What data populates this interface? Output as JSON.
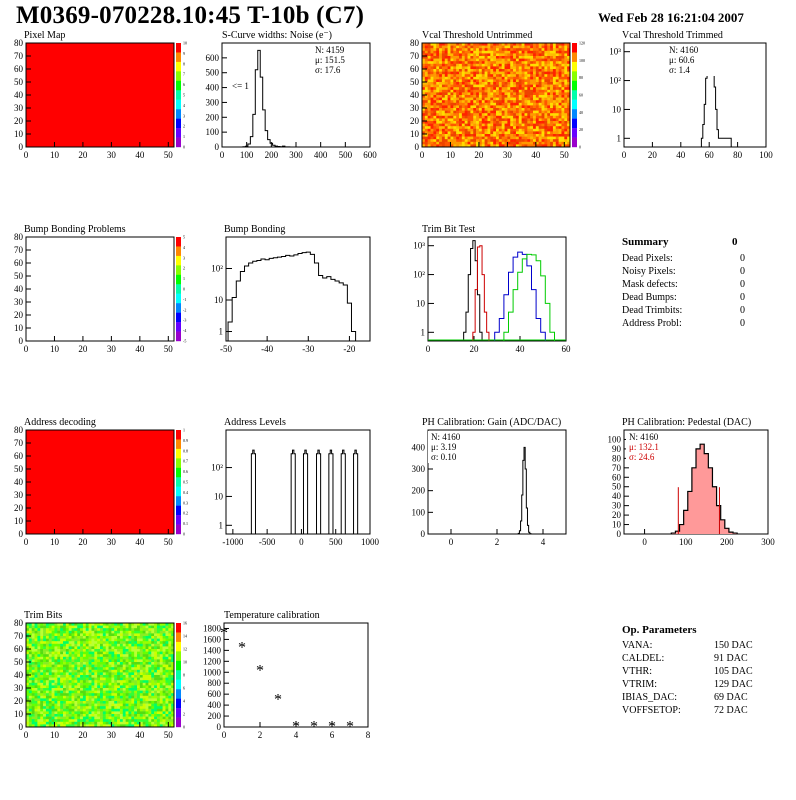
{
  "header": {
    "title": "M0369-070228.10:45 T-10b (C7)",
    "date": "Wed Feb 28 16:21:04 2007"
  },
  "colors": {
    "red_map": "#ff0000",
    "hist_line": "#000000",
    "trim_red": "#cc0000",
    "trim_blue": "#0000cc",
    "trim_green": "#00cc00",
    "pedestal_fill": "#ff9999"
  },
  "summary": {
    "title": "Summary",
    "total": "0",
    "rows": [
      {
        "label": "Dead Pixels:",
        "value": "0"
      },
      {
        "label": "Noisy Pixels:",
        "value": "0"
      },
      {
        "label": "Mask defects:",
        "value": "0"
      },
      {
        "label": "Dead Bumps:",
        "value": "0"
      },
      {
        "label": "Dead Trimbits:",
        "value": "0"
      },
      {
        "label": "Address Probl:",
        "value": "0"
      }
    ]
  },
  "op_params": {
    "title": "Op. Parameters",
    "rows": [
      {
        "label": "VANA:",
        "value": "150 DAC"
      },
      {
        "label": "CALDEL:",
        "value": "91 DAC"
      },
      {
        "label": "VTHR:",
        "value": "105 DAC"
      },
      {
        "label": "VTRIM:",
        "value": "129 DAC"
      },
      {
        "label": "IBIAS_DAC:",
        "value": "69 DAC"
      },
      {
        "label": "VOFFSETOP:",
        "value": "72 DAC"
      }
    ]
  },
  "chart_data": [
    {
      "id": "pixel_map",
      "type": "heatmap",
      "title": "Pixel Map",
      "fill": "uniform-red",
      "xlim": [
        0,
        52
      ],
      "ylim": [
        0,
        80
      ],
      "xticks": [
        "0",
        "10",
        "20",
        "30",
        "40",
        "50"
      ],
      "yticks": [
        "0",
        "10",
        "20",
        "30",
        "40",
        "50",
        "60",
        "70",
        "80"
      ],
      "zticks": [
        "0",
        "1",
        "2",
        "3",
        "4",
        "5",
        "6",
        "7",
        "8",
        "9",
        "10"
      ]
    },
    {
      "id": "scurve",
      "type": "histogram",
      "title": "S-Curve widths: Noise (e⁻)",
      "xlim": [
        0,
        600
      ],
      "ylim": [
        0,
        700
      ],
      "xticks": [
        "0",
        "100",
        "200",
        "300",
        "400",
        "500",
        "600"
      ],
      "yticks": [
        "0",
        "100",
        "200",
        "300",
        "400",
        "500",
        "600"
      ],
      "stats": [
        "N: 4159",
        "μ: 151.5",
        "σ: 17.6"
      ],
      "annotation": "<= 1",
      "x": [
        90,
        100,
        110,
        120,
        130,
        140,
        150,
        160,
        170,
        180,
        190,
        200,
        210,
        220,
        230,
        240,
        250,
        260,
        270,
        280,
        290
      ],
      "y": [
        2,
        5,
        20,
        70,
        220,
        520,
        650,
        470,
        250,
        110,
        50,
        25,
        12,
        6,
        3,
        2,
        6,
        1,
        1,
        0,
        0
      ]
    },
    {
      "id": "vcal_untrimmed",
      "type": "heatmap",
      "title": "Vcal Threshold Untrimmed",
      "fill": "noisy-orange",
      "xlim": [
        0,
        52
      ],
      "ylim": [
        0,
        80
      ],
      "xticks": [
        "0",
        "10",
        "20",
        "30",
        "40",
        "50"
      ],
      "yticks": [
        "0",
        "10",
        "20",
        "30",
        "40",
        "50",
        "60",
        "70",
        "80"
      ],
      "zticks": [
        "0",
        "20",
        "40",
        "60",
        "80",
        "100",
        "120"
      ]
    },
    {
      "id": "vcal_trimmed",
      "type": "histogram",
      "title": "Vcal Threshold Trimmed",
      "log": true,
      "xlim": [
        0,
        100
      ],
      "ylim": [
        0.5,
        2000
      ],
      "xticks": [
        "0",
        "20",
        "40",
        "60",
        "80",
        "100"
      ],
      "yticks": [
        "1",
        "10",
        "10²",
        "10³"
      ],
      "stats": [
        "N: 4160",
        "μ: 60.6",
        "σ:  1.4"
      ],
      "x": [
        55,
        56,
        57,
        58,
        59,
        60,
        61,
        62,
        63,
        64,
        65,
        66,
        67,
        72,
        75
      ],
      "y": [
        1,
        3,
        15,
        120,
        600,
        1100,
        1150,
        700,
        300,
        60,
        10,
        2,
        1,
        1,
        1
      ]
    },
    {
      "id": "bump_problems",
      "type": "heatmap",
      "title": "Bump Bonding Problems",
      "fill": "empty",
      "xlim": [
        0,
        52
      ],
      "ylim": [
        0,
        80
      ],
      "xticks": [
        "0",
        "10",
        "20",
        "30",
        "40",
        "50"
      ],
      "yticks": [
        "0",
        "10",
        "20",
        "30",
        "40",
        "50",
        "60",
        "70",
        "80"
      ],
      "zticks": [
        "-5",
        "-4",
        "-3",
        "-2",
        "-1",
        "0",
        "1",
        "2",
        "3",
        "4",
        "5"
      ]
    },
    {
      "id": "bump_bonding",
      "type": "histogram",
      "title": "Bump Bonding",
      "log": true,
      "xlim": [
        -50,
        -15
      ],
      "ylim": [
        0.5,
        1000
      ],
      "xticks": [
        "-50",
        "-40",
        "-30",
        "-20"
      ],
      "yticks": [
        "1",
        "10",
        "10²"
      ],
      "x": [
        -49,
        -48,
        -47,
        -46,
        -45,
        -44,
        -43,
        -42,
        -41,
        -40,
        -39,
        -38,
        -37,
        -36,
        -35,
        -34,
        -33,
        -32,
        -31,
        -30,
        -29,
        -28,
        -27,
        -26,
        -25,
        -24,
        -23,
        -22,
        -21,
        -20,
        -19,
        -18
      ],
      "y": [
        2,
        12,
        40,
        80,
        120,
        150,
        170,
        180,
        200,
        190,
        210,
        220,
        230,
        240,
        260,
        250,
        270,
        300,
        320,
        330,
        280,
        150,
        60,
        50,
        55,
        45,
        40,
        35,
        30,
        8,
        1,
        0
      ]
    },
    {
      "id": "trim_bit_test",
      "type": "histogram",
      "title": "Trim Bit Test",
      "log": true,
      "xlim": [
        0,
        60
      ],
      "ylim": [
        0.5,
        2000
      ],
      "xticks": [
        "0",
        "20",
        "40",
        "60"
      ],
      "yticks": [
        "1",
        "10",
        "10²",
        "10³"
      ],
      "series": [
        {
          "name": "black",
          "x": [
            16,
            17,
            18,
            19,
            20,
            21,
            22,
            23
          ],
          "y": [
            1,
            5,
            100,
            800,
            1500,
            300,
            20,
            1
          ]
        },
        {
          "name": "red",
          "x": [
            20,
            21,
            22,
            23,
            24,
            25,
            26
          ],
          "y": [
            1,
            30,
            900,
            1000,
            100,
            5,
            1
          ]
        },
        {
          "name": "blue",
          "x": [
            30,
            32,
            34,
            36,
            38,
            40,
            42,
            44,
            46,
            48,
            50
          ],
          "y": [
            1,
            3,
            20,
            120,
            400,
            600,
            500,
            200,
            30,
            3,
            1
          ]
        },
        {
          "name": "green",
          "x": [
            34,
            36,
            38,
            40,
            42,
            44,
            46,
            48,
            50,
            52,
            54
          ],
          "y": [
            1,
            5,
            30,
            120,
            350,
            500,
            480,
            300,
            90,
            10,
            1
          ]
        }
      ]
    },
    {
      "id": "address_decoding",
      "type": "heatmap",
      "title": "Address decoding",
      "fill": "uniform-red",
      "xlim": [
        0,
        52
      ],
      "ylim": [
        0,
        80
      ],
      "xticks": [
        "0",
        "10",
        "20",
        "30",
        "40",
        "50"
      ],
      "yticks": [
        "0",
        "10",
        "20",
        "30",
        "40",
        "50",
        "60",
        "70",
        "80"
      ],
      "zticks": [
        "0",
        "0.1",
        "0.2",
        "0.3",
        "0.4",
        "0.5",
        "0.6",
        "0.7",
        "0.8",
        "0.9",
        "1"
      ]
    },
    {
      "id": "address_levels",
      "type": "histogram",
      "title": "Address Levels",
      "log": true,
      "xlim": [
        -1100,
        1000
      ],
      "ylim": [
        0.5,
        2000
      ],
      "xticks": [
        "-1000",
        "-500",
        "0",
        "500",
        "1000"
      ],
      "yticks": [
        "1",
        "10",
        "10²"
      ],
      "peaks": [
        -700,
        -120,
        60,
        250,
        430,
        610,
        790
      ]
    },
    {
      "id": "ph_gain",
      "type": "histogram",
      "title": "PH Calibration: Gain (ADC/DAC)",
      "xlim": [
        -1,
        5
      ],
      "ylim": [
        0,
        480
      ],
      "xticks": [
        "0",
        "2",
        "4"
      ],
      "yticks": [
        "0",
        "100",
        "200",
        "300",
        "400"
      ],
      "stats": [
        "N: 4160",
        "μ: 3.19",
        "σ: 0.10"
      ],
      "x": [
        2.9,
        2.95,
        3.0,
        3.05,
        3.1,
        3.15,
        3.2,
        3.25,
        3.3,
        3.35,
        3.4,
        3.45,
        3.5
      ],
      "y": [
        0,
        3,
        15,
        60,
        180,
        340,
        400,
        300,
        120,
        40,
        8,
        2,
        0
      ]
    },
    {
      "id": "ph_pedestal",
      "type": "histogram",
      "title": "PH Calibration: Pedestal (DAC)",
      "xlim": [
        -50,
        300
      ],
      "ylim": [
        0,
        110
      ],
      "xticks": [
        "0",
        "100",
        "200",
        "300"
      ],
      "yticks": [
        "0",
        "10",
        "20",
        "30",
        "40",
        "50",
        "60",
        "70",
        "80",
        "90",
        "100"
      ],
      "stats": [
        "N: 4160",
        "μ: 132.1",
        "σ: 24.6"
      ],
      "cuts": [
        82,
        182
      ],
      "x": [
        70,
        80,
        90,
        100,
        110,
        120,
        130,
        140,
        150,
        160,
        170,
        180,
        190,
        200,
        210,
        220
      ],
      "y": [
        1,
        3,
        10,
        25,
        45,
        70,
        90,
        95,
        85,
        70,
        50,
        30,
        15,
        6,
        2,
        1
      ]
    },
    {
      "id": "trim_bits",
      "type": "heatmap",
      "title": "Trim Bits",
      "fill": "noisy-green",
      "xlim": [
        0,
        52
      ],
      "ylim": [
        0,
        80
      ],
      "xticks": [
        "0",
        "10",
        "20",
        "30",
        "40",
        "50"
      ],
      "yticks": [
        "0",
        "10",
        "20",
        "30",
        "40",
        "50",
        "60",
        "70",
        "80"
      ],
      "zticks": [
        "0",
        "2",
        "4",
        "6",
        "8",
        "10",
        "12",
        "14",
        "16"
      ]
    },
    {
      "id": "temperature",
      "type": "scatter",
      "title": "Temperature calibration",
      "xlim": [
        0,
        8
      ],
      "ylim": [
        0,
        1900
      ],
      "xticks": [
        "0",
        "2",
        "4",
        "6",
        "8"
      ],
      "yticks": [
        "0",
        "200",
        "400",
        "600",
        "800",
        "1000",
        "1200",
        "1400",
        "1600",
        "1800"
      ],
      "x": [
        0,
        1,
        2,
        3,
        4,
        5,
        6,
        7
      ],
      "y": [
        1720,
        1450,
        1030,
        500,
        10,
        10,
        10,
        10
      ]
    }
  ]
}
